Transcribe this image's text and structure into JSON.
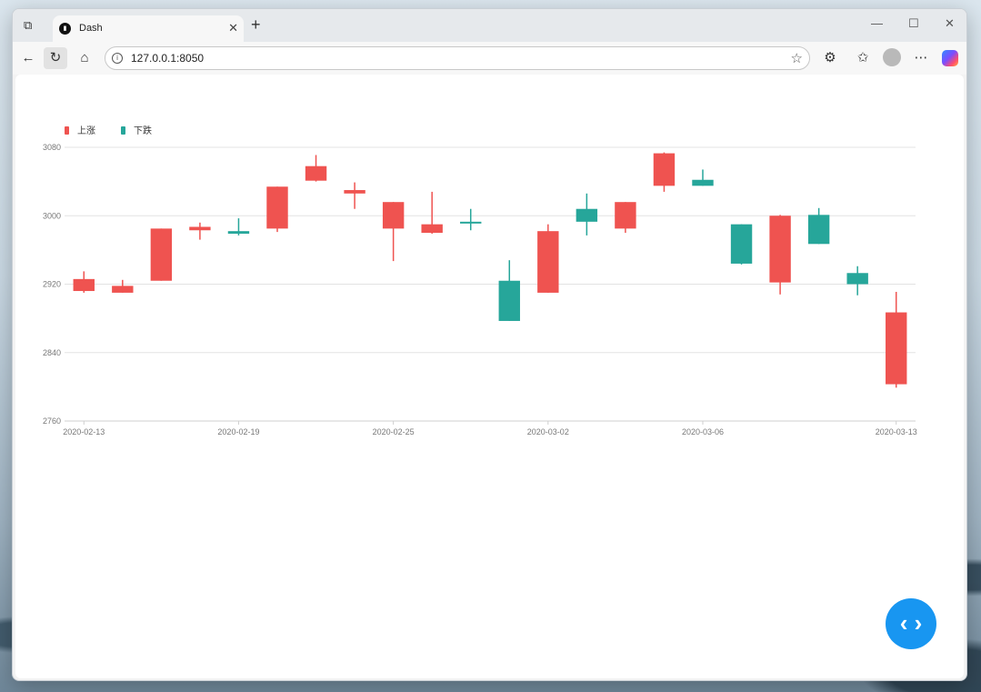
{
  "browser": {
    "tab_title": "Dash",
    "url": "127.0.0.1:8050"
  },
  "icons": [
    "workspaces-icon",
    "dash-favicon-icon",
    "tab-close-icon",
    "new-tab-icon",
    "minimize-icon",
    "maximize-icon",
    "close-icon",
    "back-icon",
    "refresh-icon",
    "home-icon",
    "site-info-icon",
    "favorite-star-icon",
    "extensions-icon",
    "favorites-icon",
    "profile-avatar-icon",
    "more-icon",
    "copilot-icon",
    "code-toggle-icon"
  ],
  "chart_data": {
    "type": "candlestick",
    "legend": [
      {
        "name": "上涨",
        "color": "#ef5350"
      },
      {
        "name": "下跌",
        "color": "#26a69a"
      }
    ],
    "legend_position": "top-left",
    "ylim": [
      2760,
      3080
    ],
    "y_ticks": [
      2760,
      2840,
      2920,
      3000,
      3080
    ],
    "x_tick_labels": [
      "2020-02-13",
      "2020-02-19",
      "2020-02-25",
      "2020-03-02",
      "2020-03-06",
      "2020-03-13"
    ],
    "x_tick_positions": [
      0,
      4,
      8,
      12,
      16,
      21
    ],
    "grid": true,
    "candles": [
      {
        "open": 2912,
        "close": 2926,
        "low": 2910,
        "high": 2935
      },
      {
        "open": 2910,
        "close": 2918,
        "low": 2910,
        "high": 2925
      },
      {
        "open": 2924,
        "close": 2985,
        "low": 2924,
        "high": 2985
      },
      {
        "open": 2983,
        "close": 2987,
        "low": 2972,
        "high": 2992
      },
      {
        "open": 2982,
        "close": 2979,
        "low": 2977,
        "high": 2997
      },
      {
        "open": 2985,
        "close": 3034,
        "low": 2981,
        "high": 3034
      },
      {
        "open": 3041,
        "close": 3058,
        "low": 3040,
        "high": 3071
      },
      {
        "open": 3026,
        "close": 3030,
        "low": 3008,
        "high": 3039
      },
      {
        "open": 2985,
        "close": 3016,
        "low": 2947,
        "high": 3016
      },
      {
        "open": 2980,
        "close": 2990,
        "low": 2979,
        "high": 3028
      },
      {
        "open": 2993,
        "close": 2992,
        "low": 2983,
        "high": 3008
      },
      {
        "open": 2924,
        "close": 2877,
        "low": 2877,
        "high": 2948
      },
      {
        "open": 2910,
        "close": 2982,
        "low": 2910,
        "high": 2990
      },
      {
        "open": 3008,
        "close": 2993,
        "low": 2977,
        "high": 3026
      },
      {
        "open": 2985,
        "close": 3016,
        "low": 2980,
        "high": 3016
      },
      {
        "open": 3035,
        "close": 3073,
        "low": 3028,
        "high": 3074
      },
      {
        "open": 3042,
        "close": 3035,
        "low": 3035,
        "high": 3054
      },
      {
        "open": 2990,
        "close": 2944,
        "low": 2943,
        "high": 2990
      },
      {
        "open": 2922,
        "close": 3000,
        "low": 2908,
        "high": 3001
      },
      {
        "open": 3001,
        "close": 2967,
        "low": 2967,
        "high": 3009
      },
      {
        "open": 2933,
        "close": 2920,
        "low": 2907,
        "high": 2941
      },
      {
        "open": 2803,
        "close": 2887,
        "low": 2799,
        "high": 2911
      }
    ]
  }
}
